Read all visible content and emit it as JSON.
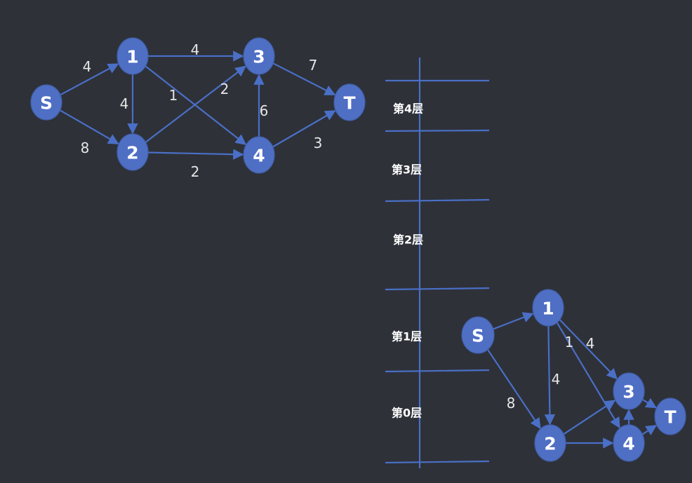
{
  "colors": {
    "background": "#2e3138",
    "node_fill": "#4f6fc4",
    "edge": "#4a6fc6",
    "text": "#ffffff",
    "weight_text": "#e6e6e6"
  },
  "graph": {
    "nodes": [
      {
        "id": "S",
        "label": "S"
      },
      {
        "id": "1",
        "label": "1"
      },
      {
        "id": "2",
        "label": "2"
      },
      {
        "id": "3",
        "label": "3"
      },
      {
        "id": "4",
        "label": "4"
      },
      {
        "id": "T",
        "label": "T"
      }
    ],
    "edges": [
      {
        "from": "S",
        "to": "1",
        "weight": "4"
      },
      {
        "from": "S",
        "to": "2",
        "weight": "8"
      },
      {
        "from": "1",
        "to": "2",
        "weight": "4"
      },
      {
        "from": "1",
        "to": "3",
        "weight": "4"
      },
      {
        "from": "1",
        "to": "4",
        "weight": "1"
      },
      {
        "from": "2",
        "to": "3",
        "weight": "2"
      },
      {
        "from": "2",
        "to": "4",
        "weight": "2"
      },
      {
        "from": "4",
        "to": "3",
        "weight": "6"
      },
      {
        "from": "3",
        "to": "T",
        "weight": "7"
      },
      {
        "from": "4",
        "to": "T",
        "weight": "3"
      }
    ]
  },
  "layered_graph": {
    "layers": [
      "第4层",
      "第3层",
      "第2层",
      "第1层",
      "第0层"
    ],
    "nodes": [
      {
        "id": "S",
        "label": "S"
      },
      {
        "id": "1",
        "label": "1"
      },
      {
        "id": "2",
        "label": "2"
      },
      {
        "id": "3",
        "label": "3"
      },
      {
        "id": "4",
        "label": "4"
      },
      {
        "id": "T",
        "label": "T"
      }
    ],
    "edges": [
      {
        "from": "S",
        "to": "1",
        "weight": ""
      },
      {
        "from": "S",
        "to": "2",
        "weight": "8"
      },
      {
        "from": "1",
        "to": "2",
        "weight": "4"
      },
      {
        "from": "1",
        "to": "3",
        "weight": "4"
      },
      {
        "from": "1",
        "to": "4",
        "weight": "1"
      },
      {
        "from": "2",
        "to": "3",
        "weight": ""
      },
      {
        "from": "2",
        "to": "4",
        "weight": ""
      },
      {
        "from": "4",
        "to": "3",
        "weight": ""
      },
      {
        "from": "3",
        "to": "T",
        "weight": ""
      },
      {
        "from": "4",
        "to": "T",
        "weight": ""
      }
    ]
  }
}
